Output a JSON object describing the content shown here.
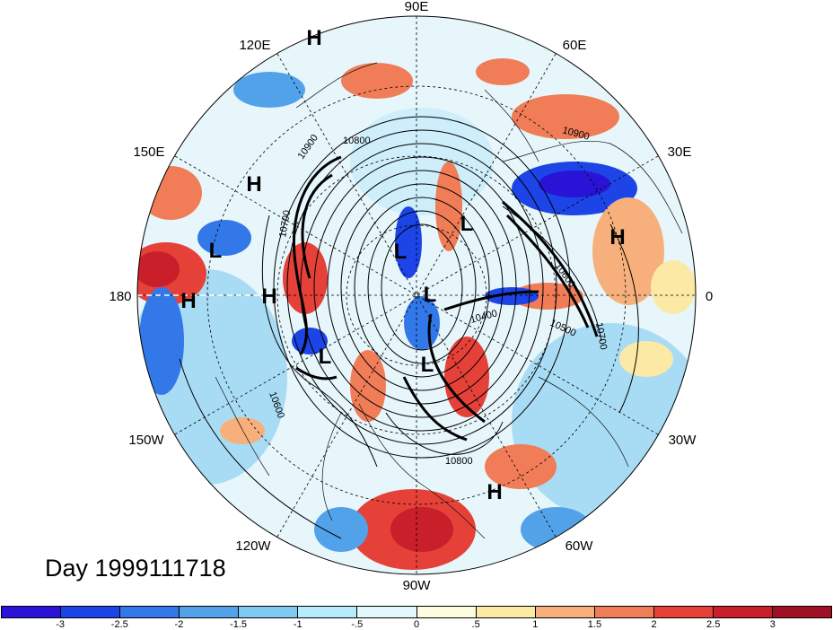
{
  "day_label": "Day 1999111718",
  "longitude_labels": {
    "top": "90E",
    "upper_right": "60E",
    "right_upper": "30E",
    "right": "0",
    "lower_right_1": "30W",
    "lower_right_2": "60W",
    "bottom": "90W",
    "lower_left_2": "120W",
    "lower_left_1": "150W",
    "left": "180",
    "left_upper": "150E",
    "upper_left": "120E"
  },
  "pressure_centers": [
    {
      "type": "H",
      "lon": "120E region"
    },
    {
      "type": "H",
      "lon": "150E region"
    },
    {
      "type": "L",
      "lon": "180 region"
    },
    {
      "type": "H",
      "lon": "180"
    },
    {
      "type": "H",
      "lon": "160W region"
    },
    {
      "type": "L",
      "lon": "150W region"
    },
    {
      "type": "L",
      "lon": "polar"
    },
    {
      "type": "L",
      "lon": "60E region"
    },
    {
      "type": "L",
      "lon": "polar"
    },
    {
      "type": "L",
      "lon": "90W region"
    },
    {
      "type": "H",
      "lon": "20E region"
    },
    {
      "type": "H",
      "lon": "60W region"
    }
  ],
  "contour_labels": [
    "10900",
    "10800",
    "10900",
    "10700",
    "10600",
    "10500",
    "10400",
    "10700",
    "10600",
    "10800"
  ],
  "colorbar": {
    "colors": [
      "#2a13d6",
      "#1c44e6",
      "#3378e8",
      "#52a2ea",
      "#7ecbf2",
      "#b6ecfb",
      "#e2f8fd",
      "#fefce0",
      "#fde9a6",
      "#f7b07c",
      "#f07d57",
      "#e54139",
      "#c81f2a",
      "#a01025"
    ],
    "ticks": [
      "-3",
      "-2.5",
      "-2",
      "-1.5",
      "-1",
      "-.5",
      "0",
      ".5",
      "1",
      "1.5",
      "2",
      "2.5",
      "3"
    ]
  },
  "colors": {
    "cold_extreme": "#2a13d6",
    "warm_extreme": "#a01025",
    "neutral": "#fefce0"
  }
}
